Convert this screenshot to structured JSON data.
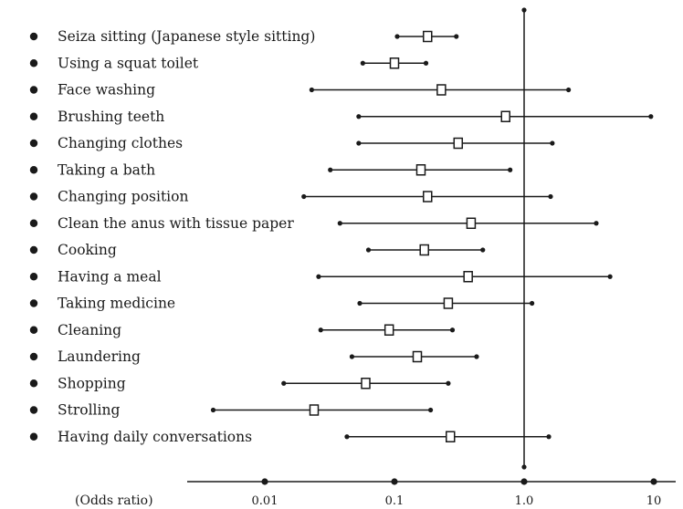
{
  "chart_data": {
    "type": "forest",
    "scale": "log",
    "xlim": [
      0.01,
      10
    ],
    "xlabel": "(Odds ratio)",
    "reference_line": 1.0,
    "tick_labels": [
      "0.01",
      "0.1",
      "1.0",
      "10"
    ],
    "tick_values": [
      0.01,
      0.1,
      1.0,
      10
    ],
    "grid": false,
    "colors": {
      "ink": "#1a1a1a",
      "marker_fill": "#ffffff"
    },
    "rows": [
      {
        "label": "Seiza sitting (Japanese style sitting)",
        "or": 0.18,
        "lo": 0.105,
        "hi": 0.3
      },
      {
        "label": "Using a squat toilet",
        "or": 0.1,
        "lo": 0.057,
        "hi": 0.175
      },
      {
        "label": "Face washing",
        "or": 0.23,
        "lo": 0.023,
        "hi": 2.2
      },
      {
        "label": "Brushing teeth",
        "or": 0.72,
        "lo": 0.053,
        "hi": 9.5
      },
      {
        "label": "Changing clothes",
        "or": 0.31,
        "lo": 0.053,
        "hi": 1.65
      },
      {
        "label": "Taking a bath",
        "or": 0.16,
        "lo": 0.032,
        "hi": 0.78
      },
      {
        "label": "Changing position",
        "or": 0.18,
        "lo": 0.02,
        "hi": 1.6
      },
      {
        "label": "Clean the anus with tissue paper",
        "or": 0.39,
        "lo": 0.038,
        "hi": 3.6
      },
      {
        "label": "Cooking",
        "or": 0.17,
        "lo": 0.063,
        "hi": 0.48
      },
      {
        "label": "Having a meal",
        "or": 0.37,
        "lo": 0.026,
        "hi": 4.6
      },
      {
        "label": "Taking medicine",
        "or": 0.26,
        "lo": 0.054,
        "hi": 1.15
      },
      {
        "label": "Cleaning",
        "or": 0.091,
        "lo": 0.027,
        "hi": 0.28
      },
      {
        "label": "Laundering",
        "or": 0.15,
        "lo": 0.047,
        "hi": 0.43
      },
      {
        "label": "Shopping",
        "or": 0.06,
        "lo": 0.014,
        "hi": 0.26
      },
      {
        "label": "Strolling",
        "or": 0.024,
        "lo": 0.004,
        "hi": 0.19
      },
      {
        "label": "Having daily conversations",
        "or": 0.27,
        "lo": 0.043,
        "hi": 1.55
      }
    ]
  }
}
